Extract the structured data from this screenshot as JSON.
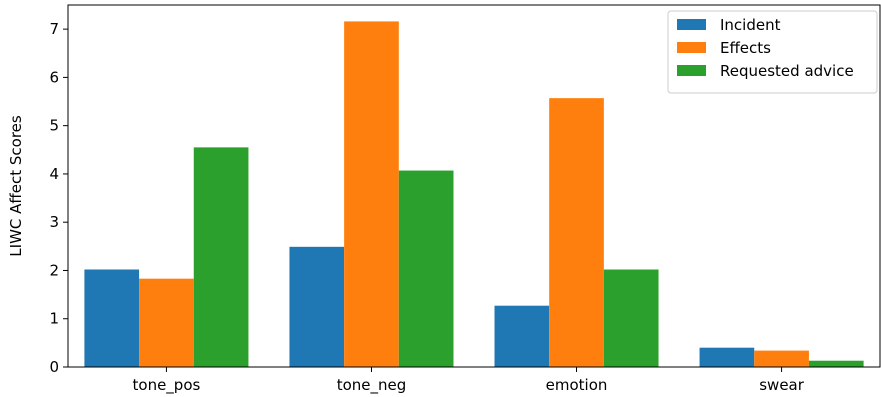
{
  "chart_data": {
    "type": "bar",
    "categories": [
      "tone_pos",
      "tone_neg",
      "emotion",
      "swear"
    ],
    "series": [
      {
        "name": "Incident",
        "values": [
          2.02,
          2.49,
          1.27,
          0.4
        ],
        "color": "#1f77b4"
      },
      {
        "name": "Effects",
        "values": [
          1.83,
          7.16,
          5.57,
          0.34
        ],
        "color": "#ff7f0e"
      },
      {
        "name": "Requested advice",
        "values": [
          4.55,
          4.07,
          2.02,
          0.13
        ],
        "color": "#2ca02c"
      }
    ],
    "title": "",
    "xlabel": "",
    "ylabel": "LIWC Affect Scores",
    "ylim": [
      0,
      7.5
    ],
    "yticks": [
      0,
      1,
      2,
      3,
      4,
      5,
      6,
      7
    ],
    "grid": false,
    "legend_position": "top-right"
  }
}
